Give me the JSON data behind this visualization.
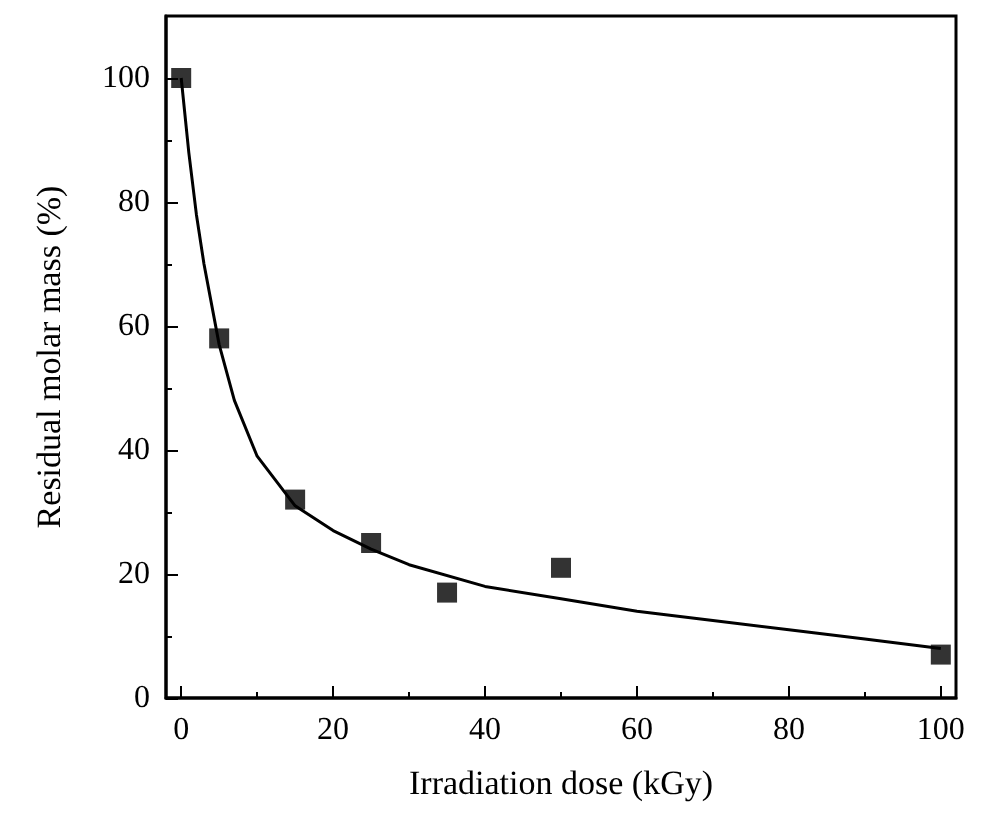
{
  "chart_data": {
    "type": "scatter",
    "xlabel": "Irradiation dose (kGy)",
    "ylabel": "Residual molar mass (%)",
    "xlim": [
      -2,
      102
    ],
    "xticks": [
      0,
      20,
      40,
      60,
      80,
      100
    ],
    "ylim": [
      0,
      110
    ],
    "yticks": [
      0,
      20,
      40,
      60,
      80,
      100
    ],
    "grid": false,
    "series": [
      {
        "type": "scatter",
        "marker": "square",
        "color": "#000000",
        "x": [
          0,
          5,
          15,
          25,
          35,
          50,
          100
        ],
        "values": [
          100,
          58,
          32,
          25,
          17,
          21,
          7
        ]
      },
      {
        "type": "line",
        "marker": "none",
        "color": "#000000",
        "x": [
          0,
          1,
          2,
          3,
          5,
          7,
          10,
          15,
          20,
          25,
          30,
          40,
          50,
          60,
          70,
          80,
          90,
          100
        ],
        "values": [
          100,
          88,
          78,
          70,
          57,
          48,
          39,
          31,
          27,
          24,
          21.5,
          18,
          16,
          14,
          12.5,
          11,
          9.5,
          8
        ]
      }
    ]
  }
}
